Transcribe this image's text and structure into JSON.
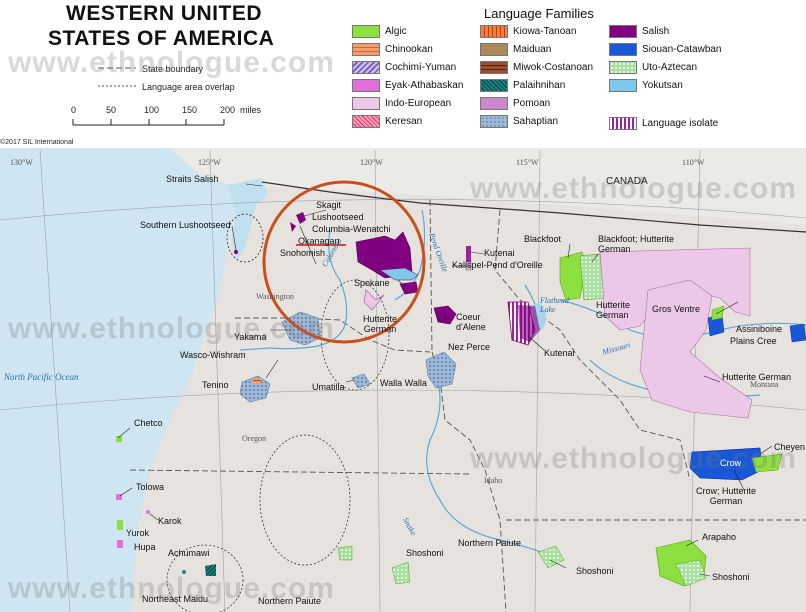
{
  "title": {
    "line1": "WESTERN UNITED",
    "line2": "STATES OF AMERICA"
  },
  "legend": {
    "title": "Language Families",
    "families": [
      {
        "label": "Algic",
        "color": "#8ee040"
      },
      {
        "label": "Chinookan",
        "color": "#f2a070"
      },
      {
        "label": "Cochimí-Yuman",
        "color": "#b59ae0"
      },
      {
        "label": "Eyak-Athabaskan",
        "color": "#e070d8"
      },
      {
        "label": "Indo-European",
        "color": "#ecc8e8"
      },
      {
        "label": "Keresan",
        "color": "#f07090"
      },
      {
        "label": "Kiowa-Tanoan",
        "color": "#f08040"
      },
      {
        "label": "Maiduan",
        "color": "#a98a58"
      },
      {
        "label": "Miwok-Costanoan",
        "color": "#9a5030"
      },
      {
        "label": "Palaihnihan",
        "color": "#1a8080"
      },
      {
        "label": "Pomoan",
        "color": "#cc88cc"
      },
      {
        "label": "Sahaptian",
        "color": "#a0b8d8"
      },
      {
        "label": "Salish",
        "color": "#800080"
      },
      {
        "label": "Siouan-Catawban",
        "color": "#1858d8"
      },
      {
        "label": "Uto-Aztecan",
        "color": "#a8e0a0"
      },
      {
        "label": "Yokutsan",
        "color": "#7ec8ec"
      },
      {
        "label": "Language isolate",
        "color": "#a020a0"
      }
    ],
    "state_boundary": "State boundary",
    "overlap": "Language area overlap",
    "scale_ticks": [
      "0",
      "50",
      "100",
      "150",
      "200"
    ],
    "scale_unit": "miles"
  },
  "copyright": "©2017 SIL International",
  "watermark": "www.ethnologue.com",
  "meridians": [
    "130°W",
    "125°W",
    "120°W",
    "115°W",
    "110°W"
  ],
  "places": {
    "canada": "CANADA",
    "washington": "Washington",
    "oregon": "Oregon",
    "idaho": "Idaho",
    "montana": "Montana"
  },
  "waters": {
    "ocean": "North Pacific Ocean",
    "columbia": "Columbia",
    "pend_oreille": "Pend Oreille",
    "flathead": "Flathead Lake",
    "missouri": "Missouri",
    "snake": "Snake"
  },
  "languages": {
    "straits_salish": "Straits Salish",
    "skagit": "Skagit",
    "lushootseed": "Lushootseed",
    "columbia_wenatchi": "Columbia-Wenatchi",
    "southern_lushootseed": "Southern Lushootseed",
    "okanagan": "Okanagan",
    "snohomish": "Snohomish",
    "kutenai_n": "Kutenai",
    "kalispel": "Kalispel-Pend d'Oreille",
    "spokane": "Spokane",
    "hutterite_wa": "Hutterite German",
    "yakama": "Yakama",
    "wasco": "Wasco-Wishram",
    "tenino": "Tenino",
    "umatilla": "Umatilla",
    "walla_walla": "Walla Walla",
    "nez_perce": "Nez Perce",
    "coeur_dalene": "Coeur d'Alene",
    "kutenai_s": "Kutenai",
    "blackfoot": "Blackfoot",
    "blackfoot_hutterite": "Blackfoot; Hutterite German",
    "hutterite_mt": "Hutterite German",
    "gros_ventre": "Gros Ventre",
    "assiniboine": "Assiniboine",
    "plains_cree": "Plains Cree",
    "hutterite_mt2": "Hutterite German",
    "cheyenne": "Cheyen",
    "crow": "Crow",
    "crow_hutterite": "Crow; Hutterite German",
    "chetco": "Chetco",
    "tolowa": "Tolowa",
    "karok": "Karok",
    "yurok": "Yurok",
    "hupa": "Hupa",
    "achumawi": "Achumawi",
    "shoshoni_id": "Shoshoni",
    "northern_paiute_id": "Northern Paiute",
    "shoshoni_se": "Shoshoni",
    "arapaho": "Arapaho",
    "shoshoni_wy": "Shoshoni",
    "northeast_maidu": "Northeast Maidu",
    "northern_paiute_s": "Northern Paiute"
  }
}
